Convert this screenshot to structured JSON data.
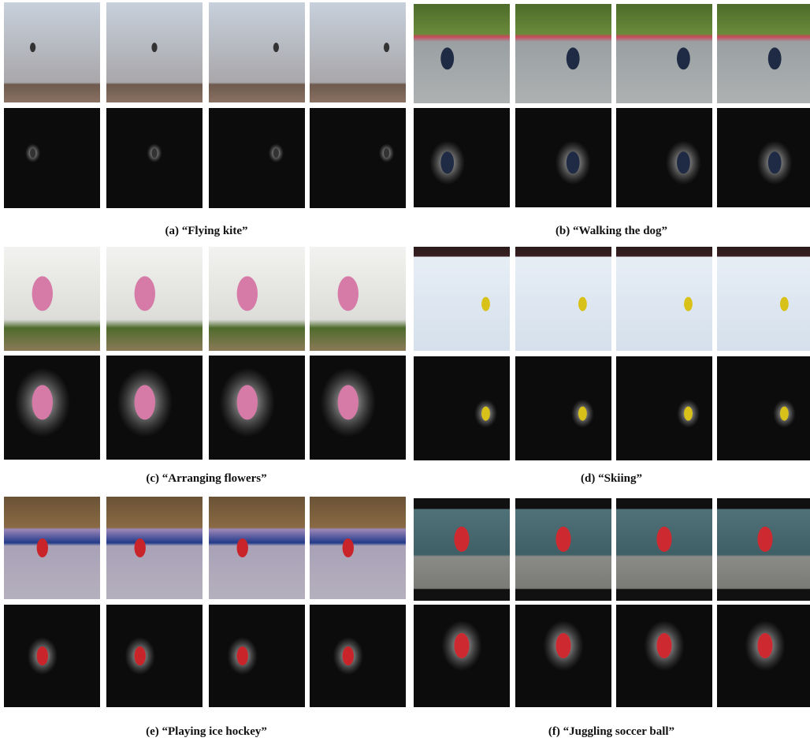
{
  "panels": [
    {
      "caption": "(a) “Flying kite”"
    },
    {
      "caption": "(b) “Walking the dog”"
    },
    {
      "caption": "(c) “Arranging flowers”"
    },
    {
      "caption": "(d) “Skiing”"
    },
    {
      "caption": "(e) “Playing ice hockey”"
    },
    {
      "caption": "(f) “Juggling soccer ball”"
    }
  ]
}
